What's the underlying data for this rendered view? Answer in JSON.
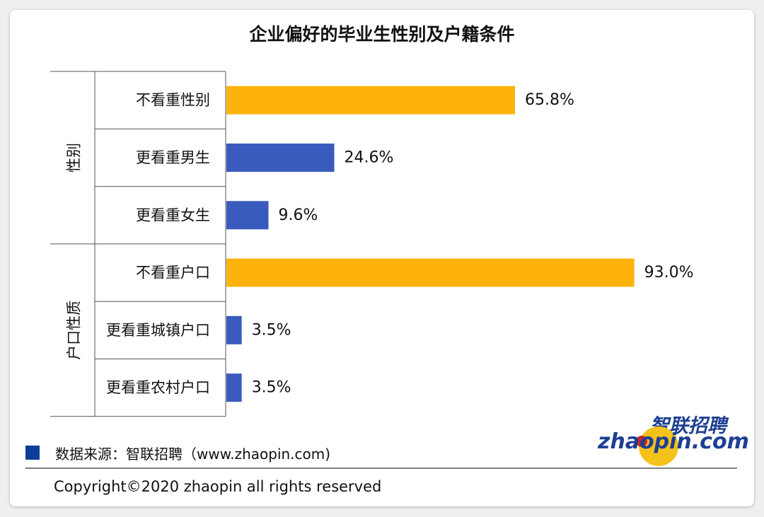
{
  "chart_data": {
    "type": "bar",
    "orientation": "horizontal",
    "title": "企业偏好的毕业生性别及户籍条件",
    "groups": [
      {
        "label": "性别",
        "categories": [
          "不看重性别",
          "更看重男生",
          "更看重女生"
        ]
      },
      {
        "label": "户口性质",
        "categories": [
          "不看重户口",
          "更看重城镇户口",
          "更看重农村户口"
        ]
      }
    ],
    "categories": [
      "不看重性别",
      "更看重男生",
      "更看重女生",
      "不看重户口",
      "更看重城镇户口",
      "更看重农村户口"
    ],
    "values": [
      65.8,
      24.6,
      9.6,
      93.0,
      3.5,
      3.5
    ],
    "value_labels": [
      "65.8%",
      "24.6%",
      "9.6%",
      "93.0%",
      "3.5%",
      "3.5%"
    ],
    "xlim": [
      0,
      100
    ],
    "grid": false,
    "colors": {
      "neutral": "#FDB30C",
      "preference": "#3A5BBE"
    },
    "bar_colors": [
      "neutral",
      "preference",
      "preference",
      "neutral",
      "preference",
      "preference"
    ]
  },
  "footer": {
    "source": "数据来源：智联招聘（www.zhaopin.com)",
    "copyright": "Copyright©2020 zhaopin all rights reserved",
    "legend_color": "#0f3e9a"
  },
  "logo": {
    "cn": "智联招聘",
    "en": "zhaopin.com"
  }
}
